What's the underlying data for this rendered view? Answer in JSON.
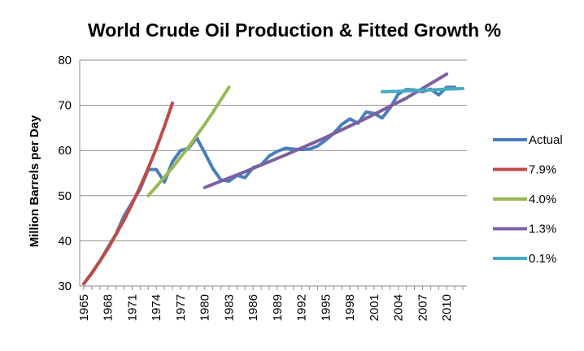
{
  "chart_data": {
    "type": "line",
    "title": "World Crude Oil Production & Fitted Growth %",
    "ylabel": "Million Barrels per Day",
    "xlabel": "",
    "ylim": [
      30,
      80
    ],
    "xlim": [
      1964.5,
      2012.5
    ],
    "yticks": [
      30,
      40,
      50,
      60,
      70,
      80
    ],
    "xticks": [
      "1965",
      "1968",
      "1971",
      "1974",
      "1977",
      "1980",
      "1983",
      "1986",
      "1989",
      "1992",
      "1995",
      "1998",
      "2001",
      "2004",
      "2007",
      "2010"
    ],
    "grid": true,
    "legend_position": "right",
    "series": [
      {
        "name": "Actual",
        "color": "#4a7ebb",
        "x": [
          1965,
          1966,
          1967,
          1968,
          1969,
          1970,
          1971,
          1972,
          1973,
          1974,
          1975,
          1976,
          1977,
          1978,
          1979,
          1980,
          1981,
          1982,
          1983,
          1984,
          1985,
          1986,
          1987,
          1988,
          1989,
          1990,
          1991,
          1992,
          1993,
          1994,
          1995,
          1996,
          1997,
          1998,
          1999,
          2000,
          2001,
          2002,
          2003,
          2004,
          2005,
          2006,
          2007,
          2008,
          2009,
          2010,
          2011
        ],
        "values": [
          30.5,
          32.8,
          35.5,
          38.5,
          41.5,
          45.5,
          48.5,
          51.5,
          55.8,
          55.8,
          53.0,
          57.5,
          60.0,
          60.5,
          62.8,
          59.5,
          56.0,
          53.5,
          53.2,
          54.5,
          54.0,
          56.2,
          56.8,
          58.8,
          59.8,
          60.5,
          60.3,
          60.2,
          60.3,
          61.0,
          62.3,
          63.8,
          65.8,
          67.0,
          66.0,
          68.5,
          68.2,
          67.2,
          69.5,
          72.5,
          73.5,
          73.4,
          73.0,
          73.6,
          72.3,
          74.0,
          74.0
        ]
      },
      {
        "name": "7.9%",
        "color": "#be4b48",
        "x": [
          1965,
          1966,
          1967,
          1968,
          1969,
          1970,
          1971,
          1972,
          1973,
          1974,
          1975,
          1976
        ],
        "values": [
          30.5,
          32.9,
          35.5,
          38.3,
          41.4,
          44.6,
          48.2,
          52.0,
          56.1,
          60.5,
          65.3,
          70.5
        ]
      },
      {
        "name": "4.0%",
        "color": "#98b954",
        "x": [
          1973,
          1974,
          1975,
          1976,
          1977,
          1978,
          1979,
          1980,
          1981,
          1982,
          1983
        ],
        "values": [
          50.0,
          52.0,
          54.1,
          56.2,
          58.5,
          60.8,
          63.3,
          65.8,
          68.4,
          71.2,
          74.0
        ]
      },
      {
        "name": "1.3%",
        "color": "#7d60a0",
        "x": [
          1980,
          1985,
          1990,
          1995,
          2000,
          2005,
          2010
        ],
        "values": [
          51.8,
          55.3,
          59.0,
          62.9,
          67.1,
          71.6,
          76.9
        ]
      },
      {
        "name": "0.1%",
        "color": "#46aac5",
        "x": [
          2002,
          2004,
          2006,
          2008,
          2010,
          2012
        ],
        "values": [
          73.0,
          73.1,
          73.3,
          73.4,
          73.6,
          73.7
        ]
      }
    ]
  }
}
